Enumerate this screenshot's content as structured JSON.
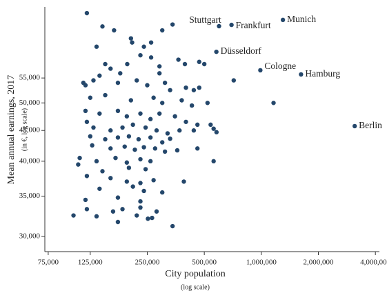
{
  "chart_data": {
    "type": "scatter",
    "x_label": "City population",
    "x_label_note": "(log scale)",
    "y_label": "Mean annual earnings, 2017",
    "y_label_note": "(in €, log scale)",
    "x_log": true,
    "y_log": true,
    "color": "#24476b",
    "label_color": "#3b5678",
    "xlim": [
      72000,
      4200000
    ],
    "ylim": [
      28300,
      72200
    ],
    "xticks": [
      {
        "value": 75000,
        "label": "75,000"
      },
      {
        "value": 125000,
        "label": "125,000"
      },
      {
        "value": 250000,
        "label": "250,000"
      },
      {
        "value": 500000,
        "label": "500,000"
      },
      {
        "value": 1000000,
        "label": "1,000,000"
      },
      {
        "value": 2000000,
        "label": "2,000,000"
      },
      {
        "value": 4000000,
        "label": "4,000,000"
      }
    ],
    "yticks": [
      {
        "value": 30000,
        "label": "30,000"
      },
      {
        "value": 35000,
        "label": "35,000"
      },
      {
        "value": 40000,
        "label": "40,000"
      },
      {
        "value": 45000,
        "label": "45,000"
      },
      {
        "value": 50000,
        "label": "50,000"
      },
      {
        "value": 55000,
        "label": "55,000"
      }
    ],
    "x": [
      120000,
      135000,
      145000,
      167000,
      205000,
      208000,
      240000,
      262000,
      300000,
      340000,
      150000,
      160000,
      180000,
      196000,
      230000,
      262000,
      290000,
      365000,
      395000,
      470000,
      500000,
      290000,
      140000,
      130000,
      115000,
      118000,
      175000,
      220000,
      250000,
      310000,
      330000,
      400000,
      440000,
      470000,
      715000,
      1160000,
      150000,
      125000,
      205000,
      270000,
      300000,
      380000,
      430000,
      520000,
      118000,
      140000,
      175000,
      195000,
      230000,
      260000,
      290000,
      350000,
      400000,
      460000,
      540000,
      120000,
      130000,
      160000,
      185000,
      210000,
      245000,
      280000,
      320000,
      370000,
      440000,
      560000,
      580000,
      125000,
      150000,
      175000,
      200000,
      225000,
      260000,
      300000,
      330000,
      128000,
      160000,
      190000,
      215000,
      240000,
      275000,
      310000,
      360000,
      460000,
      110000,
      135000,
      170000,
      195000,
      230000,
      260000,
      560000,
      108000,
      145000,
      200000,
      245000,
      120000,
      160000,
      195000,
      230000,
      270000,
      390000,
      140000,
      210000,
      240000,
      300000,
      118000,
      175000,
      230000,
      185000,
      230000,
      280000,
      102000,
      135000,
      165000,
      220000,
      265000,
      175000,
      340000,
      120000,
      252000
    ],
    "y": [
      70500,
      62000,
      67000,
      66000,
      64000,
      63000,
      62000,
      63000,
      66000,
      67500,
      58000,
      57000,
      56000,
      58000,
      60000,
      59500,
      57500,
      59000,
      58000,
      58500,
      58000,
      56000,
      55500,
      54500,
      54000,
      53500,
      54000,
      54500,
      53500,
      54000,
      52500,
      53000,
      52500,
      53000,
      54500,
      50000,
      51500,
      51000,
      50500,
      51000,
      50000,
      50500,
      49500,
      50000,
      48500,
      48000,
      48500,
      47500,
      48000,
      47000,
      48000,
      47500,
      46500,
      46000,
      46000,
      46500,
      45500,
      45000,
      45500,
      46000,
      45500,
      45000,
      44500,
      45000,
      45000,
      45300,
      44700,
      44000,
      43500,
      43800,
      44000,
      43500,
      43800,
      43000,
      43600,
      42500,
      42000,
      42300,
      41800,
      42200,
      42000,
      41500,
      41700,
      42000,
      40500,
      40000,
      40500,
      39800,
      40300,
      40000,
      40000,
      39500,
      38500,
      39000,
      38800,
      37800,
      37500,
      37000,
      36800,
      37200,
      37000,
      36000,
      36300,
      35700,
      35500,
      34500,
      34800,
      34300,
      33300,
      33500,
      33000,
      32500,
      32400,
      33000,
      32500,
      32200,
      31700,
      31200,
      33300,
      32100
    ],
    "annotations": [
      {
        "text": "Stuttgart",
        "x": 598000,
        "y": 67060
      },
      {
        "text": "Frankfurt",
        "x": 696000,
        "y": 67400
      },
      {
        "text": "Munich",
        "x": 1300000,
        "y": 68700
      },
      {
        "text": "Düsseldorf",
        "x": 579000,
        "y": 60800
      },
      {
        "text": "Cologne",
        "x": 988000,
        "y": 56650
      },
      {
        "text": "Hamburg",
        "x": 1620000,
        "y": 55760
      },
      {
        "text": "Berlin",
        "x": 3110000,
        "y": 45750
      }
    ]
  }
}
